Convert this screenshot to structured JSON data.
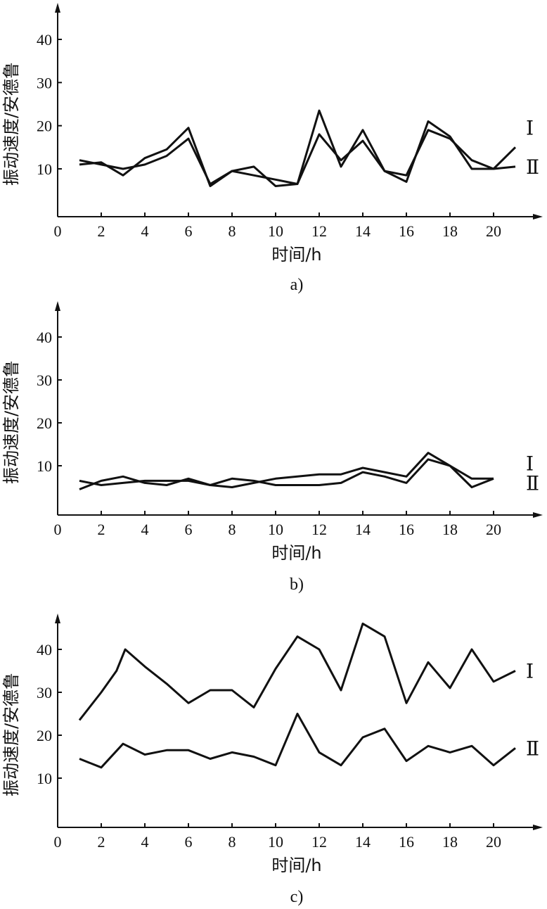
{
  "chart_data": [
    {
      "type": "line",
      "caption": "a)",
      "xlabel": "时间/h",
      "ylabel": "振动速度/安德鲁",
      "xlim": [
        0,
        22
      ],
      "ylim": [
        0,
        45
      ],
      "xticks": [
        0,
        2,
        4,
        6,
        8,
        10,
        12,
        14,
        16,
        18,
        20
      ],
      "yticks": [
        10,
        20,
        30,
        40
      ],
      "series": [
        {
          "name": "Ⅰ",
          "x": [
            1,
            2,
            3,
            4,
            5,
            6,
            7,
            8,
            9,
            10,
            11,
            12,
            13,
            14,
            15,
            16,
            17,
            18,
            19,
            20,
            21
          ],
          "y": [
            11,
            11.5,
            8.5,
            12.5,
            14.5,
            19.5,
            6,
            9.5,
            10.5,
            6,
            6.5,
            23.5,
            10.5,
            19,
            9.5,
            7,
            21,
            17.5,
            10,
            10,
            15
          ]
        },
        {
          "name": "Ⅱ",
          "x": [
            1,
            2,
            3,
            4,
            5,
            6,
            7,
            8,
            9,
            10,
            11,
            12,
            13,
            14,
            15,
            16,
            17,
            18,
            19,
            20,
            21
          ],
          "y": [
            12,
            11,
            10,
            11,
            13,
            17,
            6.5,
            9.5,
            8.5,
            7.5,
            6.5,
            18,
            12,
            16.5,
            9.5,
            8.5,
            19,
            17,
            12,
            10,
            10.5
          ]
        }
      ]
    },
    {
      "type": "line",
      "caption": "b)",
      "xlabel": "时间/h",
      "ylabel": "振动速度/安德鲁",
      "xlim": [
        0,
        22
      ],
      "ylim": [
        0,
        45
      ],
      "xticks": [
        0,
        2,
        4,
        6,
        8,
        10,
        12,
        14,
        16,
        18,
        20
      ],
      "yticks": [
        10,
        20,
        30,
        40
      ],
      "series": [
        {
          "name": "Ⅰ",
          "x": [
            1,
            2,
            3,
            4,
            5,
            6,
            7,
            8,
            9,
            10,
            11,
            12,
            13,
            14,
            15,
            16,
            17,
            18,
            19,
            20
          ],
          "y": [
            4.5,
            6.5,
            7.5,
            6,
            5.5,
            7,
            5.5,
            5,
            6,
            7,
            7.5,
            8,
            8,
            9.5,
            8.5,
            7.5,
            13,
            10,
            7,
            7
          ]
        },
        {
          "name": "Ⅱ",
          "x": [
            1,
            2,
            3,
            4,
            5,
            6,
            7,
            8,
            9,
            10,
            11,
            12,
            13,
            14,
            15,
            16,
            17,
            18,
            19,
            20
          ],
          "y": [
            6.5,
            5.5,
            6,
            6.5,
            6.5,
            6.5,
            5.5,
            7,
            6.5,
            5.5,
            5.5,
            5.5,
            6,
            8.5,
            7.5,
            6,
            11.5,
            10,
            5,
            7
          ]
        }
      ]
    },
    {
      "type": "line",
      "caption": "c)",
      "xlabel": "时间/h",
      "ylabel": "振动速度/安德鲁",
      "xlim": [
        0,
        22
      ],
      "ylim": [
        0,
        45
      ],
      "xticks": [
        0,
        2,
        4,
        6,
        8,
        10,
        12,
        14,
        16,
        18,
        20
      ],
      "yticks": [
        10,
        20,
        30,
        40
      ],
      "series": [
        {
          "name": "Ⅰ",
          "x": [
            1,
            2,
            2.7,
            3.1,
            4,
            5,
            6,
            7,
            8,
            9,
            10,
            11,
            12,
            13,
            14,
            15,
            16,
            17,
            18,
            19,
            20,
            21
          ],
          "y": [
            23.5,
            30,
            35,
            40,
            36,
            32,
            27.5,
            30.5,
            30.5,
            26.5,
            35.5,
            43,
            40,
            30.5,
            46,
            43,
            27.5,
            37,
            31,
            40,
            32.5,
            35
          ]
        },
        {
          "name": "Ⅱ",
          "x": [
            1,
            2,
            3,
            4,
            5,
            6,
            7,
            8,
            9,
            10,
            11,
            12,
            13,
            14,
            15,
            16,
            17,
            18,
            19,
            20,
            21
          ],
          "y": [
            14.5,
            12.5,
            18,
            15.5,
            16.5,
            16.5,
            14.5,
            16,
            15,
            13,
            25,
            16,
            13,
            19.5,
            21.5,
            14,
            17.5,
            16,
            17.5,
            13,
            17
          ]
        }
      ]
    }
  ]
}
